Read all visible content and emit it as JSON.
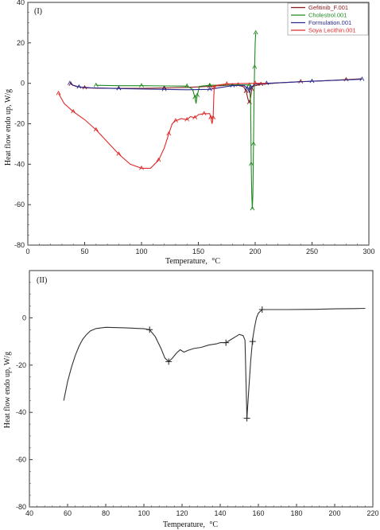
{
  "chart_data": [
    {
      "type": "line",
      "panel_label": "(I)",
      "xlabel": "Temperature,",
      "xlabel_unit": "°C",
      "ylabel": "Heat flow endo up, W/g",
      "xlim": [
        0,
        300
      ],
      "ylim": [
        -80,
        40
      ],
      "xticks": [
        "0",
        "50",
        "100",
        "150",
        "200",
        "250",
        "300"
      ],
      "yticks": [
        "40",
        "20",
        "0",
        "-20",
        "-40",
        "-60",
        "-80"
      ],
      "legend_position": "top-right",
      "series": [
        {
          "name": "Gefitinib_F.001",
          "color": "#8b1a1a",
          "points": [
            [
              38,
              -0.5
            ],
            [
              42,
              -1.5
            ],
            [
              50,
              -2.2
            ],
            [
              60,
              -2.4
            ],
            [
              80,
              -2.5
            ],
            [
              100,
              -2.5
            ],
            [
              120,
              -2.3
            ],
            [
              140,
              -2.0
            ],
            [
              160,
              -1.5
            ],
            [
              175,
              -1.0
            ],
            [
              185,
              -0.8
            ],
            [
              190,
              -1.8
            ],
            [
              192,
              -4.0
            ],
            [
              194,
              -8.5
            ],
            [
              195,
              -9.5
            ],
            [
              196,
              -7.0
            ],
            [
              197,
              -3.0
            ],
            [
              198,
              -1.5
            ],
            [
              205,
              -0.5
            ],
            [
              220,
              0.2
            ],
            [
              240,
              0.8
            ],
            [
              260,
              1.2
            ],
            [
              280,
              1.8
            ],
            [
              293,
              2.2
            ]
          ]
        },
        {
          "name": "Cholestrol.001",
          "color": "#1f8a1f",
          "points": [
            [
              60,
              -1.0
            ],
            [
              80,
              -1.2
            ],
            [
              100,
              -1.2
            ],
            [
              120,
              -1.3
            ],
            [
              140,
              -1.4
            ],
            [
              145,
              -3.0
            ],
            [
              147,
              -7.0
            ],
            [
              148,
              -10.0
            ],
            [
              149,
              -6.0
            ],
            [
              151,
              -1.5
            ],
            [
              160,
              -1.0
            ],
            [
              180,
              -0.8
            ],
            [
              195,
              -0.8
            ],
            [
              196,
              -10
            ],
            [
              196.5,
              -40
            ],
            [
              197,
              -55
            ],
            [
              197.5,
              -62
            ],
            [
              198,
              -55
            ],
            [
              198.5,
              -30
            ],
            [
              199,
              -5
            ],
            [
              199.5,
              8
            ],
            [
              200,
              20
            ],
            [
              200.5,
              25
            ]
          ]
        },
        {
          "name": "Formulation.001",
          "color": "#2a2a8f",
          "points": [
            [
              37,
              0.0
            ],
            [
              40,
              -1.0
            ],
            [
              45,
              -1.8
            ],
            [
              55,
              -2.2
            ],
            [
              80,
              -2.6
            ],
            [
              100,
              -2.8
            ],
            [
              120,
              -3.0
            ],
            [
              140,
              -3.2
            ],
            [
              160,
              -3.0
            ],
            [
              170,
              -2.0
            ],
            [
              180,
              -1.2
            ],
            [
              190,
              -1.0
            ],
            [
              193,
              -2.5
            ],
            [
              195,
              -4.5
            ],
            [
              196,
              -2.0
            ],
            [
              200,
              -0.5
            ],
            [
              210,
              0.0
            ],
            [
              230,
              0.5
            ],
            [
              250,
              1.0
            ],
            [
              270,
              1.5
            ],
            [
              294,
              2.0
            ]
          ]
        },
        {
          "name": "Soya Lecithin.001",
          "color": "#e02a2a",
          "points": [
            [
              27,
              -5
            ],
            [
              32,
              -10
            ],
            [
              40,
              -14
            ],
            [
              50,
              -18
            ],
            [
              60,
              -23
            ],
            [
              70,
              -29
            ],
            [
              80,
              -35
            ],
            [
              90,
              -40
            ],
            [
              100,
              -42
            ],
            [
              108,
              -42
            ],
            [
              115,
              -38
            ],
            [
              120,
              -32
            ],
            [
              124,
              -25
            ],
            [
              127,
              -20
            ],
            [
              130,
              -18.5
            ],
            [
              135,
              -17.5
            ],
            [
              140,
              -18
            ],
            [
              143,
              -16.5
            ],
            [
              147,
              -17
            ],
            [
              150,
              -15.5
            ],
            [
              155,
              -15
            ],
            [
              160,
              -15
            ],
            [
              161,
              -17
            ],
            [
              162,
              -20
            ],
            [
              163,
              -17
            ],
            [
              163.5,
              -8
            ],
            [
              164,
              -2
            ],
            [
              166,
              -1
            ],
            [
              175,
              -0.3
            ],
            [
              190,
              -0.1
            ],
            [
              200,
              0
            ],
            [
              210,
              0
            ]
          ]
        }
      ]
    },
    {
      "type": "line",
      "panel_label": "(II)",
      "xlabel": "Temperature,",
      "xlabel_unit": "°C",
      "ylabel": "Heat flow endo up, W/g",
      "xlim": [
        40,
        220
      ],
      "ylim": [
        -80,
        20
      ],
      "xticks": [
        "40",
        "60",
        "80",
        "100",
        "120",
        "140",
        "160",
        "180",
        "200",
        "220"
      ],
      "yticks": [
        "0",
        "-20",
        "-40",
        "-60",
        "-80"
      ],
      "series": [
        {
          "color": "#333333",
          "points": [
            [
              58,
              -35
            ],
            [
              60,
              -27
            ],
            [
              62,
              -21
            ],
            [
              64,
              -16
            ],
            [
              66,
              -12
            ],
            [
              68,
              -9
            ],
            [
              70,
              -7
            ],
            [
              72,
              -5.5
            ],
            [
              75,
              -4.5
            ],
            [
              80,
              -4
            ],
            [
              90,
              -4.2
            ],
            [
              100,
              -4.6
            ],
            [
              103,
              -5
            ],
            [
              106,
              -8
            ],
            [
              109,
              -13
            ],
            [
              111,
              -17
            ],
            [
              113,
              -18.5
            ],
            [
              115,
              -17
            ],
            [
              117,
              -15
            ],
            [
              119,
              -13.5
            ],
            [
              121,
              -14.5
            ],
            [
              123,
              -13.8
            ],
            [
              126,
              -13
            ],
            [
              130,
              -12.5
            ],
            [
              134,
              -11.5
            ],
            [
              138,
              -11
            ],
            [
              140,
              -10.5
            ],
            [
              143,
              -10.5
            ],
            [
              146,
              -9
            ],
            [
              148,
              -8
            ],
            [
              150,
              -7
            ],
            [
              152,
              -7.5
            ],
            [
              153,
              -9.5
            ],
            [
              154,
              -42.5
            ],
            [
              155,
              -30
            ],
            [
              156,
              -18
            ],
            [
              157,
              -9
            ],
            [
              158,
              -4
            ],
            [
              159,
              0
            ],
            [
              160,
              2
            ],
            [
              162,
              3.5
            ],
            [
              165,
              3.5
            ],
            [
              175,
              3.5
            ],
            [
              190,
              3.6
            ],
            [
              200,
              3.8
            ],
            [
              210,
              3.9
            ],
            [
              216,
              4.0
            ]
          ],
          "markers": [
            [
              103,
              -5
            ],
            [
              113,
              -18.5
            ],
            [
              143,
              -10.5
            ],
            [
              154,
              -42.5
            ],
            [
              157,
              -10
            ],
            [
              162,
              3.5
            ]
          ]
        }
      ]
    }
  ]
}
